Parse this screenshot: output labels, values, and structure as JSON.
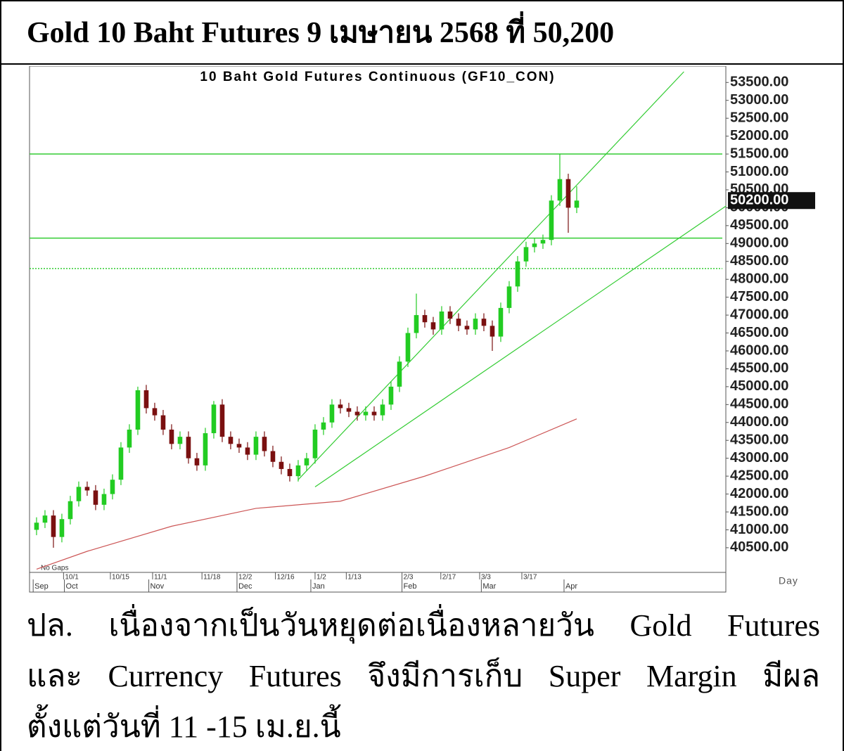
{
  "header": {
    "title": "Gold 10 Baht Futures 9 เมษายน 2568 ที่ 50,200"
  },
  "chart_data": {
    "type": "candlestick",
    "title": "10 Baht Gold Futures Continuous (GF10_CON)",
    "up_color": "#22cc22",
    "down_color": "#7a1010",
    "level_color": "#33cc33",
    "x": [
      0,
      1,
      2,
      3,
      4,
      5,
      6,
      7,
      8,
      9,
      10,
      11,
      12,
      13,
      14,
      15,
      16,
      17,
      18,
      19,
      20,
      21,
      22,
      23,
      24,
      25,
      26,
      27,
      28,
      29,
      30,
      31,
      32,
      33,
      34,
      35,
      36,
      37,
      38,
      39,
      40,
      41,
      42,
      43,
      44,
      45,
      46,
      47,
      48,
      49,
      50,
      51,
      52,
      53,
      54,
      55,
      56,
      57,
      58,
      59,
      60,
      61,
      62,
      63,
      64
    ],
    "ohlc": [
      [
        41000,
        41350,
        40850,
        41200
      ],
      [
        41200,
        41550,
        41050,
        41400
      ],
      [
        41400,
        41550,
        40500,
        40800
      ],
      [
        40800,
        41450,
        40650,
        41300
      ],
      [
        41300,
        41950,
        41150,
        41800
      ],
      [
        41800,
        42350,
        41650,
        42200
      ],
      [
        42200,
        42350,
        41950,
        42100
      ],
      [
        42100,
        42250,
        41550,
        41700
      ],
      [
        41700,
        42150,
        41550,
        42000
      ],
      [
        42000,
        42550,
        41850,
        42400
      ],
      [
        42400,
        43450,
        42250,
        43300
      ],
      [
        43300,
        43950,
        43150,
        43800
      ],
      [
        43800,
        45000,
        43650,
        44900
      ],
      [
        44900,
        45050,
        44250,
        44400
      ],
      [
        44400,
        44550,
        44050,
        44200
      ],
      [
        44200,
        44350,
        43650,
        43800
      ],
      [
        43800,
        43950,
        43250,
        43400
      ],
      [
        43400,
        43750,
        43250,
        43600
      ],
      [
        43600,
        43750,
        42850,
        43000
      ],
      [
        43000,
        43150,
        42650,
        42800
      ],
      [
        42800,
        43850,
        42650,
        43700
      ],
      [
        43700,
        44600,
        43550,
        44500
      ],
      [
        44500,
        44650,
        43450,
        43600
      ],
      [
        43600,
        43750,
        43250,
        43400
      ],
      [
        43400,
        43550,
        43150,
        43300
      ],
      [
        43300,
        43450,
        42950,
        43100
      ],
      [
        43100,
        43750,
        42950,
        43600
      ],
      [
        43600,
        43750,
        43050,
        43200
      ],
      [
        43200,
        43350,
        42750,
        42900
      ],
      [
        42900,
        43050,
        42550,
        42700
      ],
      [
        42700,
        42850,
        42350,
        42500
      ],
      [
        42500,
        42950,
        42350,
        42800
      ],
      [
        42800,
        43150,
        42650,
        43000
      ],
      [
        43000,
        43950,
        42850,
        43800
      ],
      [
        43800,
        44150,
        43650,
        44000
      ],
      [
        44000,
        44650,
        43850,
        44500
      ],
      [
        44500,
        44650,
        44250,
        44400
      ],
      [
        44400,
        44550,
        44150,
        44300
      ],
      [
        44300,
        44450,
        44050,
        44200
      ],
      [
        44200,
        44450,
        44050,
        44300
      ],
      [
        44300,
        44450,
        44050,
        44200
      ],
      [
        44200,
        44650,
        44050,
        44500
      ],
      [
        44500,
        45150,
        44350,
        45000
      ],
      [
        45000,
        45850,
        44850,
        45700
      ],
      [
        45700,
        46650,
        45550,
        46500
      ],
      [
        46500,
        47600,
        46350,
        47000
      ],
      [
        47000,
        47150,
        46650,
        46800
      ],
      [
        46800,
        46950,
        46450,
        46600
      ],
      [
        46600,
        47250,
        46450,
        47100
      ],
      [
        47100,
        47250,
        46750,
        46900
      ],
      [
        46900,
        47050,
        46550,
        46700
      ],
      [
        46700,
        46850,
        46450,
        46600
      ],
      [
        46600,
        47050,
        46450,
        46900
      ],
      [
        46900,
        47050,
        46550,
        46700
      ],
      [
        46700,
        46850,
        46000,
        46400
      ],
      [
        46400,
        47350,
        46250,
        47200
      ],
      [
        47200,
        47950,
        47050,
        47800
      ],
      [
        47800,
        48650,
        47650,
        48500
      ],
      [
        48500,
        49050,
        48350,
        48900
      ],
      [
        48900,
        49150,
        48750,
        49000
      ],
      [
        49000,
        49250,
        48850,
        49100
      ],
      [
        49100,
        50350,
        48950,
        50200
      ],
      [
        50200,
        51500,
        50050,
        50800
      ],
      [
        50800,
        50950,
        49300,
        50000
      ],
      [
        50000,
        50600,
        49850,
        50200
      ]
    ],
    "lines": [
      {
        "color": "#cc5555",
        "x": [
          0,
          6,
          16,
          26,
          36,
          46,
          56,
          64
        ],
        "values": [
          39900,
          40400,
          41100,
          41600,
          41800,
          42500,
          43300,
          44100
        ]
      },
      {
        "color": "#33cc33",
        "x": [
          31,
          76.7
        ],
        "values": [
          42400,
          53800
        ]
      },
      {
        "color": "#33cc33",
        "x": [
          33,
          81.7
        ],
        "values": [
          42200,
          50050
        ]
      }
    ],
    "levels": [
      51500,
      49150,
      48300
    ],
    "last_price": {
      "value": 50200,
      "label": "50200.00"
    },
    "xlim": [
      -0.83,
      81.67
    ],
    "ylim": [
      39850,
      53800
    ],
    "yticks": [
      {
        "value": 40500,
        "label": "40500.00"
      },
      {
        "value": 41000,
        "label": "41000.00"
      },
      {
        "value": 41500,
        "label": "41500.00"
      },
      {
        "value": 42000,
        "label": "42000.00"
      },
      {
        "value": 42500,
        "label": "42500.00"
      },
      {
        "value": 43000,
        "label": "43000.00"
      },
      {
        "value": 43500,
        "label": "43500.00"
      },
      {
        "value": 44000,
        "label": "44000.00"
      },
      {
        "value": 44500,
        "label": "44500.00"
      },
      {
        "value": 45000,
        "label": "45000.00"
      },
      {
        "value": 45500,
        "label": "45500.00"
      },
      {
        "value": 46000,
        "label": "46000.00"
      },
      {
        "value": 46500,
        "label": "46500.00"
      },
      {
        "value": 47000,
        "label": "47000.00"
      },
      {
        "value": 47500,
        "label": "47500.00"
      },
      {
        "value": 48000,
        "label": "48000.00"
      },
      {
        "value": 48500,
        "label": "48500.00"
      },
      {
        "value": 49000,
        "label": "49000.00"
      },
      {
        "value": 49500,
        "label": "49500.00"
      },
      {
        "value": 50000,
        "label": "50000.00"
      },
      {
        "value": 50500,
        "label": "50500.00"
      },
      {
        "value": 51000,
        "label": "51000.00"
      },
      {
        "value": 51500,
        "label": "51500.00"
      },
      {
        "value": 52000,
        "label": "52000.00"
      },
      {
        "value": 52500,
        "label": "52500.00"
      },
      {
        "value": 53000,
        "label": "53000.00"
      },
      {
        "value": 53500,
        "label": "53500.00"
      }
    ],
    "xticks": [
      {
        "value": 3.2,
        "label": "10/1"
      },
      {
        "value": 8.75,
        "label": "10/15"
      },
      {
        "value": 13.75,
        "label": "11/1"
      },
      {
        "value": 19.6,
        "label": "11/18"
      },
      {
        "value": 23.75,
        "label": "12/2"
      },
      {
        "value": 28.3,
        "label": "12/16"
      },
      {
        "value": 33,
        "label": "1/2"
      },
      {
        "value": 36.7,
        "label": "1/13"
      },
      {
        "value": 43.3,
        "label": "2/3"
      },
      {
        "value": 47.9,
        "label": "2/17"
      },
      {
        "value": 52.5,
        "label": "3/3"
      },
      {
        "value": 57.5,
        "label": "3/17"
      }
    ],
    "month_ticks": [
      {
        "value": -0.4,
        "label": "Sep"
      },
      {
        "value": 3.3,
        "label": "Oct"
      },
      {
        "value": 13.3,
        "label": "Nov"
      },
      {
        "value": 23.75,
        "label": "Dec"
      },
      {
        "value": 32.5,
        "label": "Jan"
      },
      {
        "value": 43.3,
        "label": "Feb"
      },
      {
        "value": 52.7,
        "label": "Mar"
      },
      {
        "value": 62.5,
        "label": "Apr"
      }
    ],
    "annotations": {
      "no_gaps": "No Gaps",
      "period": "Day"
    }
  },
  "note": {
    "lines": [
      "ปล. เนื่องจากเป็นวันหยุดต่อเนื่องหลายวัน Gold Futures",
      "และ Currency Futures จึงมีการเก็บ Super Margin มีผล",
      "ตั้งแต่วันที่ 11 -15 เม.ย.นี้"
    ]
  }
}
